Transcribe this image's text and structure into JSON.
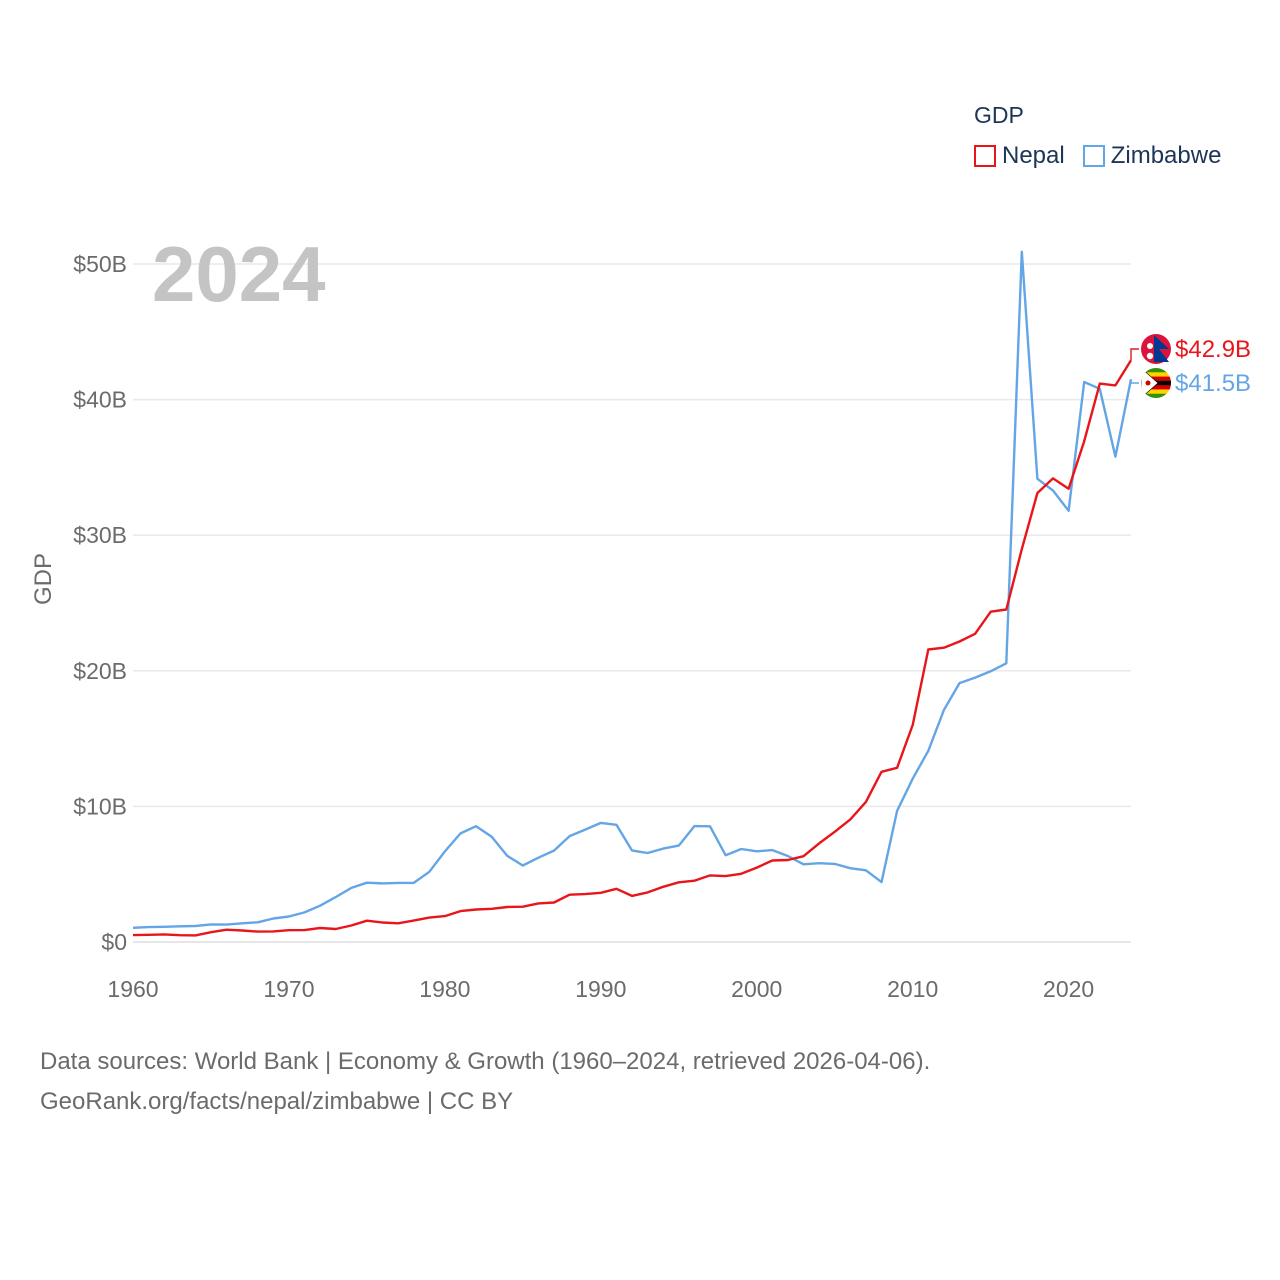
{
  "chart_data": {
    "type": "line",
    "title": "",
    "year_label": "2024",
    "ylabel": "GDP",
    "xlabel": "",
    "xlim": [
      1960,
      2024
    ],
    "ylim": [
      0,
      52
    ],
    "x_ticks": [
      1960,
      1970,
      1980,
      1990,
      2000,
      2010,
      2020
    ],
    "y_ticks": [
      {
        "value": 0,
        "label": "$0"
      },
      {
        "value": 10,
        "label": "$10B"
      },
      {
        "value": 20,
        "label": "$20B"
      },
      {
        "value": 30,
        "label": "$30B"
      },
      {
        "value": 40,
        "label": "$40B"
      },
      {
        "value": 50,
        "label": "$50B"
      }
    ],
    "legend_title": "GDP",
    "grid": true,
    "x": [
      1960,
      1961,
      1962,
      1963,
      1964,
      1965,
      1966,
      1967,
      1968,
      1969,
      1970,
      1971,
      1972,
      1973,
      1974,
      1975,
      1976,
      1977,
      1978,
      1979,
      1980,
      1981,
      1982,
      1983,
      1984,
      1985,
      1986,
      1987,
      1988,
      1989,
      1990,
      1991,
      1992,
      1993,
      1994,
      1995,
      1996,
      1997,
      1998,
      1999,
      2000,
      2001,
      2002,
      2003,
      2004,
      2005,
      2006,
      2007,
      2008,
      2009,
      2010,
      2011,
      2012,
      2013,
      2014,
      2015,
      2016,
      2017,
      2018,
      2019,
      2020,
      2021,
      2022,
      2023,
      2024
    ],
    "series": [
      {
        "name": "Nepal",
        "color": "#e8161b",
        "end_label": "$42.9B",
        "flag": "nepal-flag",
        "values": [
          0.51,
          0.53,
          0.56,
          0.5,
          0.49,
          0.72,
          0.91,
          0.85,
          0.77,
          0.78,
          0.87,
          0.88,
          1.03,
          0.96,
          1.22,
          1.57,
          1.44,
          1.38,
          1.58,
          1.8,
          1.91,
          2.28,
          2.4,
          2.45,
          2.58,
          2.6,
          2.85,
          2.91,
          3.49,
          3.53,
          3.63,
          3.92,
          3.4,
          3.66,
          4.07,
          4.4,
          4.52,
          4.91,
          4.86,
          5.03,
          5.49,
          6.01,
          6.05,
          6.33,
          7.27,
          8.13,
          9.04,
          10.33,
          12.55,
          12.85,
          16.0,
          21.57,
          21.7,
          22.16,
          22.73,
          24.36,
          24.52,
          28.97,
          33.11,
          34.19,
          33.43,
          36.93,
          41.18,
          41.05,
          42.9
        ]
      },
      {
        "name": "Zimbabwe",
        "color": "#64a5e6",
        "end_label": "$41.5B",
        "flag": "zimbabwe-flag",
        "values": [
          1.05,
          1.1,
          1.12,
          1.16,
          1.18,
          1.3,
          1.28,
          1.38,
          1.45,
          1.73,
          1.88,
          2.18,
          2.68,
          3.31,
          3.99,
          4.37,
          4.32,
          4.36,
          4.36,
          5.18,
          6.68,
          8.01,
          8.54,
          7.76,
          6.35,
          5.64,
          6.22,
          6.74,
          7.81,
          8.29,
          8.78,
          8.64,
          6.75,
          6.56,
          6.89,
          7.11,
          8.55,
          8.53,
          6.4,
          6.86,
          6.69,
          6.78,
          6.34,
          5.73,
          5.81,
          5.76,
          5.44,
          5.29,
          4.42,
          9.67,
          12.04,
          14.1,
          17.11,
          19.09,
          19.5,
          19.96,
          20.55,
          50.9,
          34.16,
          33.3,
          31.8,
          41.3,
          40.8,
          35.8,
          41.5
        ]
      }
    ]
  },
  "sources": {
    "line1": "Data sources: World Bank | Economy & Growth (1960–2024, retrieved 2026-04-06).",
    "line2": "GeoRank.org/facts/nepal/zimbabwe | CC BY"
  }
}
